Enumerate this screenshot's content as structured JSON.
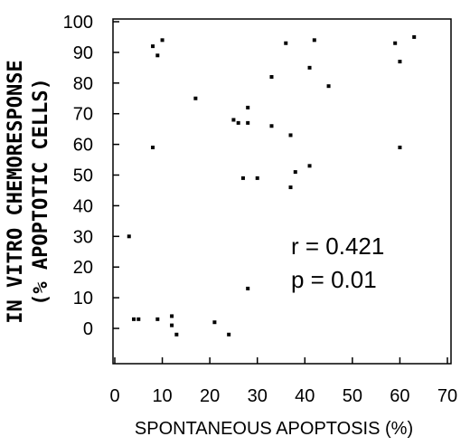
{
  "chart_data": {
    "type": "scatter",
    "xlabel": "SPONTANEOUS APOPTOSIS (%)",
    "ylabel_line1": "IN VITRO CHEMORESPONSE",
    "ylabel_line2": "(% APOPTOTIC CELLS)",
    "xlim": [
      0,
      70
    ],
    "ylim": [
      -10,
      100
    ],
    "xticks": [
      "0",
      "10",
      "20",
      "30",
      "40",
      "50",
      "60",
      "70"
    ],
    "yticks": [
      "0",
      "10",
      "20",
      "30",
      "40",
      "50",
      "60",
      "70",
      "80",
      "90",
      "100"
    ],
    "annotations": [
      "r = 0.421",
      "p = 0.01"
    ],
    "grid": false,
    "points": [
      {
        "x": 3,
        "y": 30
      },
      {
        "x": 4,
        "y": 3
      },
      {
        "x": 5,
        "y": 3
      },
      {
        "x": 8,
        "y": 92
      },
      {
        "x": 8,
        "y": 59
      },
      {
        "x": 9,
        "y": 89
      },
      {
        "x": 9,
        "y": 3
      },
      {
        "x": 10,
        "y": 94
      },
      {
        "x": 12,
        "y": 4
      },
      {
        "x": 12,
        "y": 1
      },
      {
        "x": 13,
        "y": -2
      },
      {
        "x": 17,
        "y": 75
      },
      {
        "x": 21,
        "y": 2
      },
      {
        "x": 24,
        "y": -2
      },
      {
        "x": 25,
        "y": 68
      },
      {
        "x": 26,
        "y": 67
      },
      {
        "x": 27,
        "y": 49
      },
      {
        "x": 28,
        "y": 72
      },
      {
        "x": 28,
        "y": 67
      },
      {
        "x": 28,
        "y": 13
      },
      {
        "x": 30,
        "y": 49
      },
      {
        "x": 33,
        "y": 66
      },
      {
        "x": 33,
        "y": 82
      },
      {
        "x": 36,
        "y": 93
      },
      {
        "x": 37,
        "y": 63
      },
      {
        "x": 37,
        "y": 46
      },
      {
        "x": 38,
        "y": 51
      },
      {
        "x": 41,
        "y": 53
      },
      {
        "x": 41,
        "y": 85
      },
      {
        "x": 42,
        "y": 94
      },
      {
        "x": 45,
        "y": 79
      },
      {
        "x": 59,
        "y": 93
      },
      {
        "x": 60,
        "y": 59
      },
      {
        "x": 60,
        "y": 87
      },
      {
        "x": 63,
        "y": 95
      }
    ]
  }
}
